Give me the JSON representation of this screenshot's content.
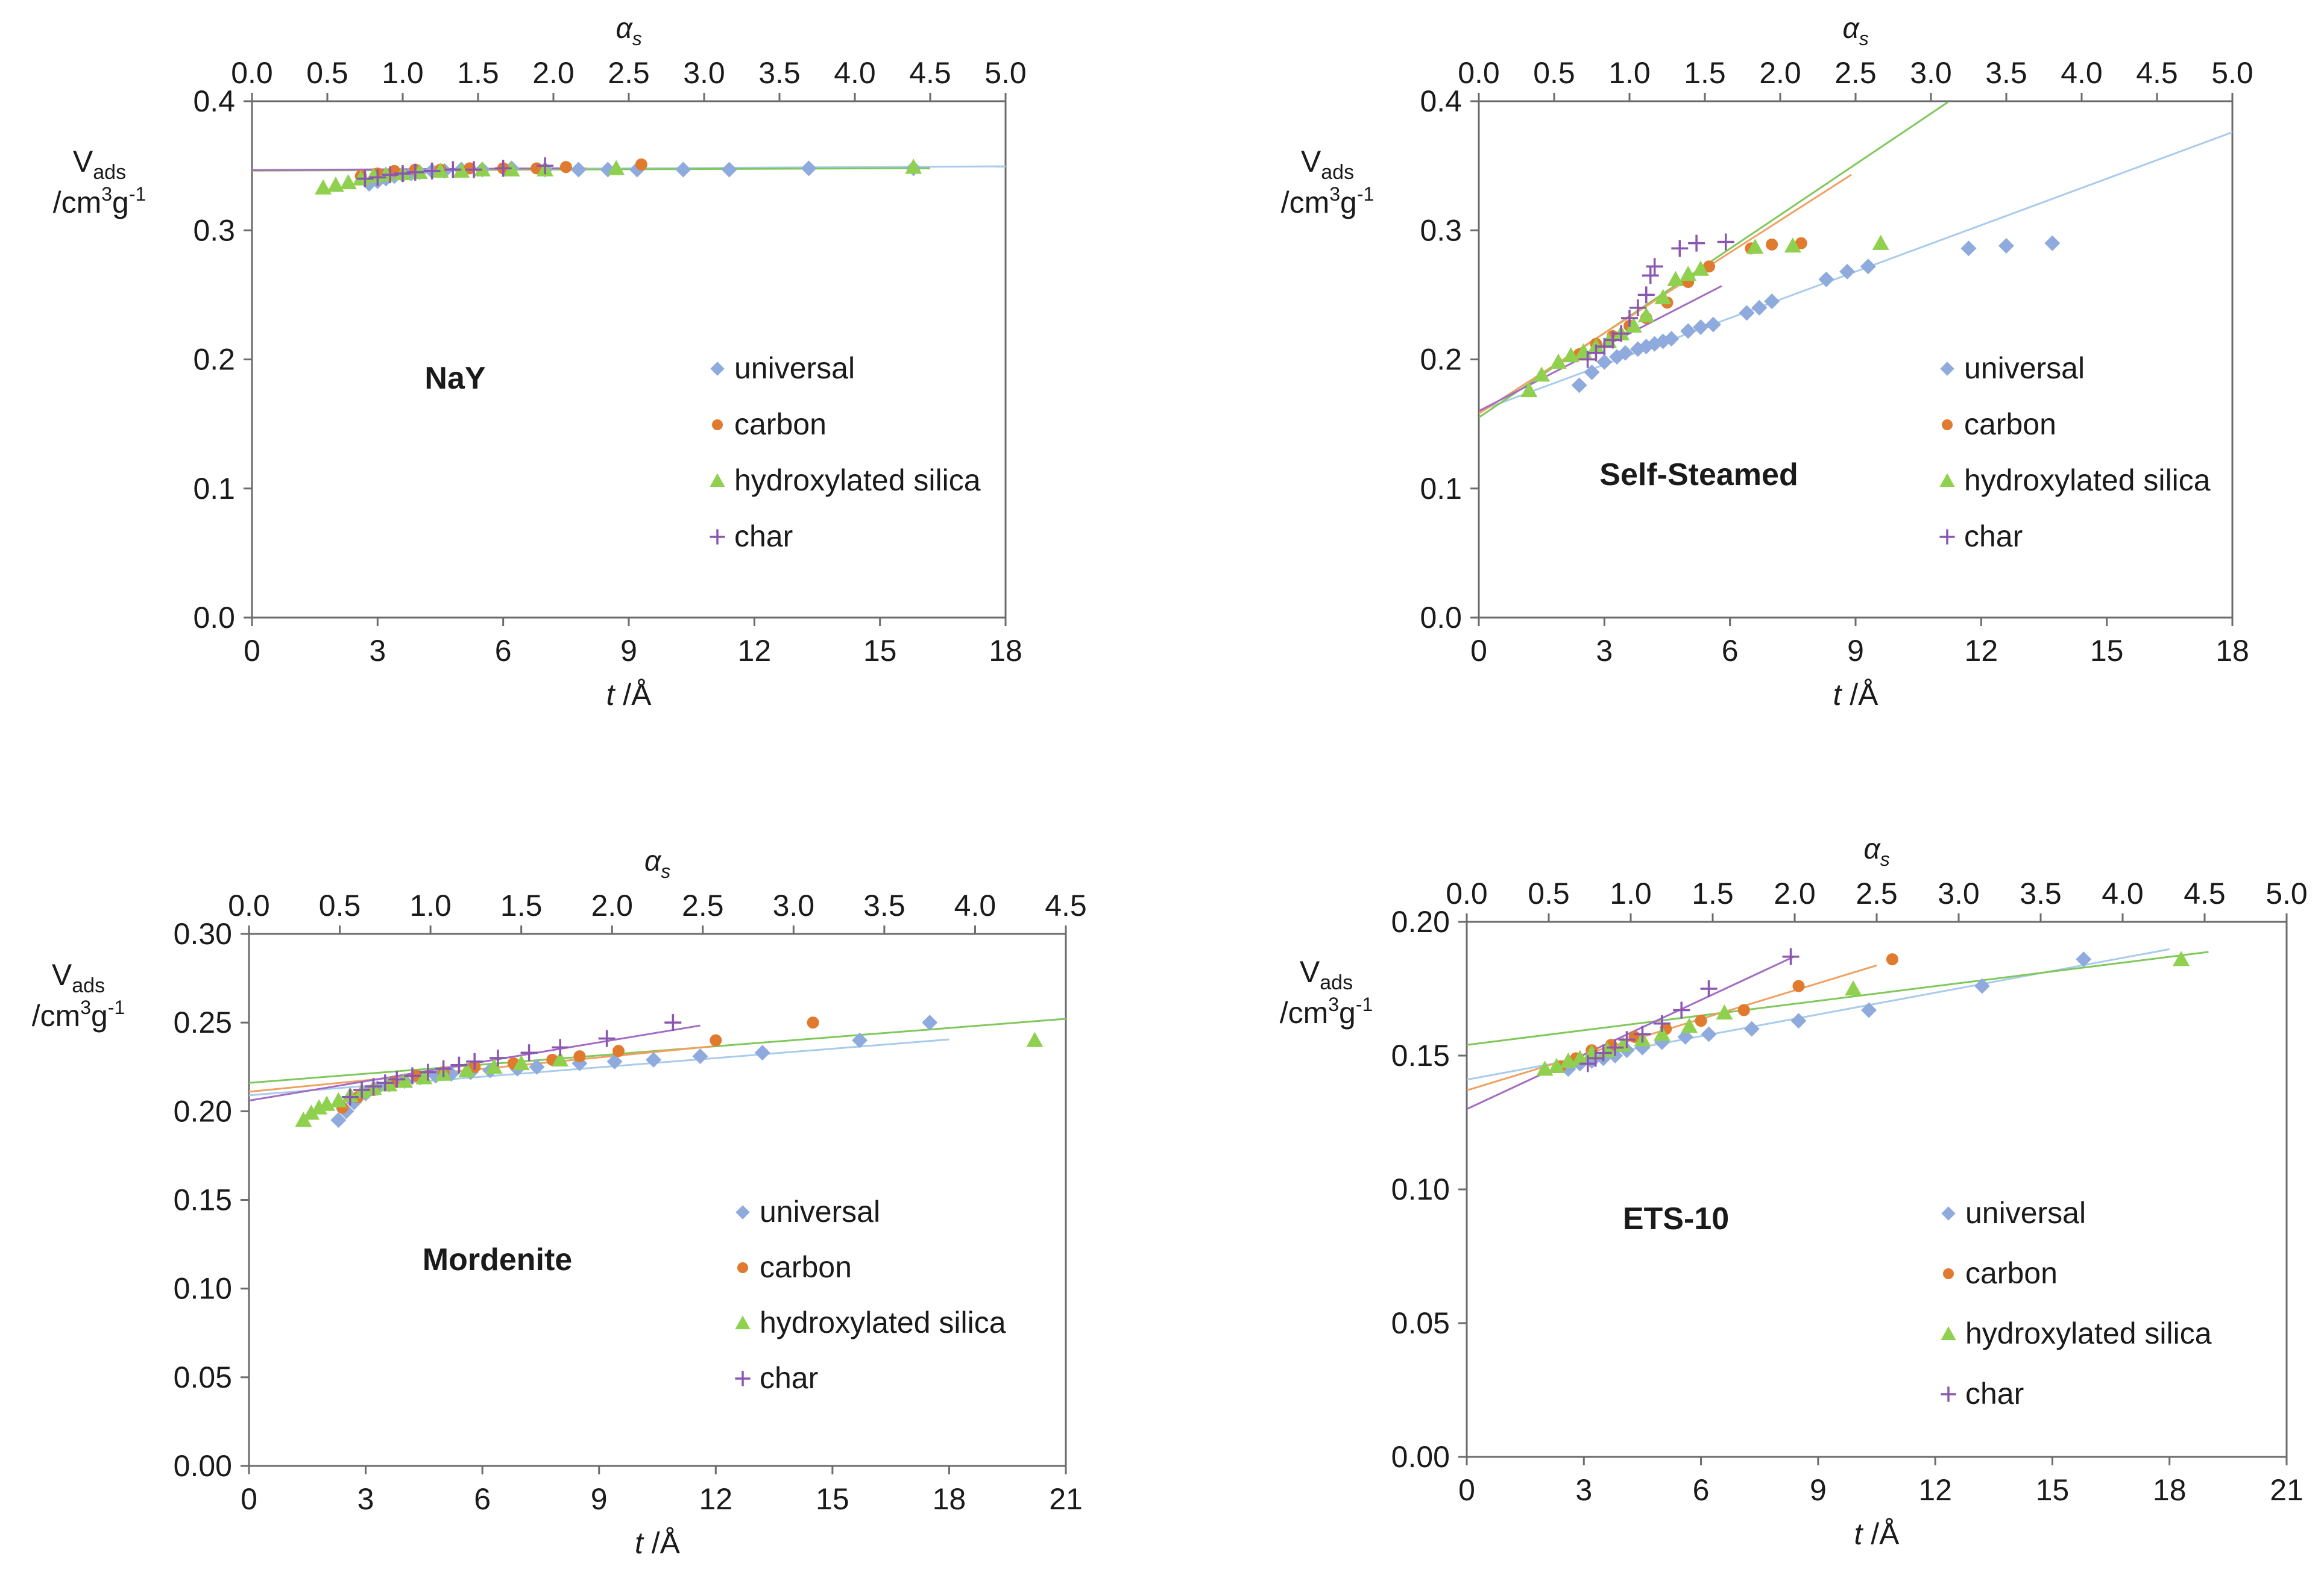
{
  "colors": {
    "universal": "#8faadc",
    "carbon": "#e07a2e",
    "hydroxylated_silica": "#8fd14f",
    "char": "#8a56b0",
    "universal_line": "#a9cbec",
    "carbon_line": "#f0a060",
    "hydroxylated_silica_line": "#7fc85a",
    "char_line": "#a36bc4",
    "axis": "#6b6b6b"
  },
  "chart_data": [
    {
      "type": "scatter",
      "title": "NaY",
      "xlabel_t": "t",
      "xlabel_unit": "/Å",
      "xlabel_alpha": "α",
      "xlabel_alpha_sub": "s",
      "ylabel_main": "V",
      "ylabel_sub": "ads",
      "ylabel_unit_pre": "/cm",
      "ylabel_unit_sup1": "3",
      "ylabel_unit_mid": "g",
      "ylabel_unit_sup2": "-1",
      "xlim": [
        0,
        18
      ],
      "ylim": [
        0,
        0.4
      ],
      "alim": [
        0,
        5
      ],
      "xticks": [
        "0",
        "3",
        "6",
        "9",
        "12",
        "15",
        "18"
      ],
      "yticks": [
        "0.0",
        "0.1",
        "0.2",
        "0.3",
        "0.4"
      ],
      "aticks": [
        "0.0",
        "0.5",
        "1.0",
        "1.5",
        "2.0",
        "2.5",
        "3.0",
        "3.5",
        "4.0",
        "4.5",
        "5.0"
      ],
      "legend": [
        "universal",
        "carbon",
        "hydroxylated silica",
        "char"
      ],
      "series": [
        {
          "name": "universal",
          "marker": "diamond",
          "x": [
            2.8,
            3.0,
            3.2,
            3.4,
            3.6,
            3.8,
            4.0,
            4.3,
            4.6,
            5.0,
            5.5,
            6.2,
            7.0,
            7.8,
            8.5,
            9.2,
            10.3,
            11.4,
            13.3,
            15.8
          ],
          "y": [
            0.336,
            0.338,
            0.34,
            0.342,
            0.343,
            0.344,
            0.345,
            0.346,
            0.346,
            0.347,
            0.347,
            0.348,
            0.347,
            0.347,
            0.347,
            0.347,
            0.347,
            0.347,
            0.348,
            0.348
          ]
        },
        {
          "name": "carbon",
          "marker": "circle",
          "x": [
            2.6,
            3.0,
            3.4,
            3.9,
            4.5,
            5.2,
            6.0,
            6.8,
            7.5,
            9.3
          ],
          "y": [
            0.342,
            0.344,
            0.346,
            0.347,
            0.347,
            0.348,
            0.348,
            0.348,
            0.349,
            0.351
          ]
        },
        {
          "name": "hydroxylated silica",
          "marker": "triangle",
          "x": [
            1.7,
            2.0,
            2.3,
            2.6,
            2.9,
            3.2,
            3.6,
            4.0,
            4.5,
            5.0,
            5.5,
            6.2,
            7.0,
            8.7,
            15.8
          ],
          "y": [
            0.333,
            0.335,
            0.337,
            0.34,
            0.342,
            0.343,
            0.344,
            0.345,
            0.346,
            0.346,
            0.347,
            0.347,
            0.347,
            0.348,
            0.349
          ]
        },
        {
          "name": "char",
          "marker": "plus",
          "x": [
            2.7,
            3.0,
            3.3,
            3.6,
            3.9,
            4.3,
            4.8,
            5.3,
            6.0,
            7.0
          ],
          "y": [
            0.34,
            0.341,
            0.343,
            0.344,
            0.345,
            0.346,
            0.347,
            0.347,
            0.348,
            0.35
          ]
        }
      ],
      "fits": [
        {
          "name": "universal",
          "slope": 0.00017,
          "intercept": 0.3465,
          "x_range": [
            0,
            18
          ]
        },
        {
          "name": "hydroxylated silica",
          "slope": 0.00012,
          "intercept": 0.3462,
          "x_range": [
            0,
            16.2
          ]
        },
        {
          "name": "carbon",
          "slope": 0.0002,
          "intercept": 0.3465,
          "x_range": [
            0,
            8
          ]
        },
        {
          "name": "char",
          "slope": 0.0002,
          "intercept": 0.3466,
          "x_range": [
            0,
            7.5
          ]
        }
      ]
    },
    {
      "type": "scatter",
      "title": "Self-Steamed",
      "xlabel_t": "t",
      "xlabel_unit": "/Å",
      "xlabel_alpha": "α",
      "xlabel_alpha_sub": "s",
      "ylabel_main": "V",
      "ylabel_sub": "ads",
      "ylabel_unit_pre": "/cm",
      "ylabel_unit_sup1": "3",
      "ylabel_unit_mid": "g",
      "ylabel_unit_sup2": "-1",
      "xlim": [
        0,
        18
      ],
      "ylim": [
        0,
        0.4
      ],
      "alim": [
        0,
        5
      ],
      "xticks": [
        "0",
        "3",
        "6",
        "9",
        "12",
        "15",
        "18"
      ],
      "yticks": [
        "0.0",
        "0.1",
        "0.2",
        "0.3",
        "0.4"
      ],
      "aticks": [
        "0.0",
        "0.5",
        "1.0",
        "1.5",
        "2.0",
        "2.5",
        "3.0",
        "3.5",
        "4.0",
        "4.5",
        "5.0"
      ],
      "legend": [
        "universal",
        "carbon",
        "hydroxylated silica",
        "char"
      ],
      "series": [
        {
          "name": "universal",
          "marker": "diamond",
          "x": [
            2.4,
            2.7,
            3.0,
            3.3,
            3.5,
            3.8,
            4.0,
            4.2,
            4.4,
            4.6,
            5.0,
            5.3,
            5.6,
            6.4,
            6.7,
            7.0,
            8.3,
            8.8,
            9.3,
            11.7,
            12.6,
            13.7
          ],
          "y": [
            0.18,
            0.19,
            0.198,
            0.202,
            0.205,
            0.208,
            0.21,
            0.212,
            0.214,
            0.216,
            0.222,
            0.225,
            0.227,
            0.236,
            0.24,
            0.245,
            0.262,
            0.268,
            0.272,
            0.286,
            0.288,
            0.29
          ]
        },
        {
          "name": "carbon",
          "marker": "circle",
          "x": [
            2.4,
            2.8,
            3.2,
            3.6,
            4.0,
            4.5,
            5.0,
            5.5,
            6.5,
            7.0,
            7.7
          ],
          "y": [
            0.204,
            0.212,
            0.218,
            0.226,
            0.232,
            0.244,
            0.26,
            0.272,
            0.286,
            0.289,
            0.29
          ]
        },
        {
          "name": "hydroxylated silica",
          "marker": "triangle",
          "x": [
            1.2,
            1.5,
            1.9,
            2.2,
            2.5,
            2.8,
            3.1,
            3.4,
            3.7,
            4.0,
            4.4,
            4.7,
            5.0,
            5.3,
            6.6,
            7.5,
            9.6
          ],
          "y": [
            0.176,
            0.188,
            0.198,
            0.203,
            0.206,
            0.21,
            0.214,
            0.22,
            0.226,
            0.234,
            0.248,
            0.262,
            0.266,
            0.27,
            0.287,
            0.288,
            0.29
          ]
        },
        {
          "name": "char",
          "marker": "plus",
          "x": [
            2.6,
            2.8,
            3.0,
            3.2,
            3.4,
            3.6,
            3.8,
            4.0,
            4.1,
            4.2,
            4.8,
            5.2,
            5.9
          ],
          "y": [
            0.2,
            0.205,
            0.21,
            0.215,
            0.22,
            0.232,
            0.24,
            0.25,
            0.265,
            0.272,
            0.286,
            0.29,
            0.291
          ]
        }
      ],
      "fits": [
        {
          "name": "universal",
          "slope": 0.012,
          "intercept": 0.16,
          "x_range": [
            0,
            18
          ]
        },
        {
          "name": "hydroxylated silica",
          "slope": 0.0218,
          "intercept": 0.155,
          "x_range": [
            0,
            11.2
          ]
        },
        {
          "name": "carbon",
          "slope": 0.0208,
          "intercept": 0.158,
          "x_range": [
            0,
            8.9
          ]
        },
        {
          "name": "char",
          "slope": 0.0167,
          "intercept": 0.16,
          "x_range": [
            0,
            5.8
          ]
        }
      ]
    },
    {
      "type": "scatter",
      "title": "Mordenite",
      "xlabel_t": "t",
      "xlabel_unit": "/Å",
      "xlabel_alpha": "α",
      "xlabel_alpha_sub": "s",
      "ylabel_main": "V",
      "ylabel_sub": "ads",
      "ylabel_unit_pre": "/cm",
      "ylabel_unit_sup1": "3",
      "ylabel_unit_mid": "g",
      "ylabel_unit_sup2": "-1",
      "xlim": [
        0,
        21
      ],
      "ylim": [
        0,
        0.3
      ],
      "alim": [
        0,
        4.5
      ],
      "xticks": [
        "0",
        "3",
        "6",
        "9",
        "12",
        "15",
        "18",
        "21"
      ],
      "yticks": [
        "0.00",
        "0.05",
        "0.10",
        "0.15",
        "0.20",
        "0.25",
        "0.30"
      ],
      "aticks": [
        "0.0",
        "0.5",
        "1.0",
        "1.5",
        "2.0",
        "2.5",
        "3.0",
        "3.5",
        "4.0",
        "4.5"
      ],
      "legend": [
        "universal",
        "carbon",
        "hydroxylated silica",
        "char"
      ],
      "series": [
        {
          "name": "universal",
          "marker": "diamond",
          "x": [
            2.3,
            2.5,
            2.7,
            3.0,
            3.3,
            3.6,
            4.0,
            4.4,
            4.8,
            5.2,
            5.7,
            6.2,
            6.9,
            7.4,
            8.5,
            9.4,
            10.4,
            11.6,
            13.2,
            15.7,
            17.5
          ],
          "y": [
            0.195,
            0.2,
            0.205,
            0.21,
            0.213,
            0.215,
            0.217,
            0.219,
            0.22,
            0.221,
            0.222,
            0.223,
            0.224,
            0.225,
            0.227,
            0.228,
            0.229,
            0.231,
            0.233,
            0.24,
            0.25
          ]
        },
        {
          "name": "carbon",
          "marker": "circle",
          "x": [
            2.4,
            2.8,
            3.2,
            3.7,
            4.3,
            5.0,
            5.8,
            6.8,
            7.8,
            8.5,
            9.5,
            12.0,
            14.5
          ],
          "y": [
            0.202,
            0.208,
            0.212,
            0.216,
            0.22,
            0.222,
            0.225,
            0.227,
            0.229,
            0.231,
            0.234,
            0.24,
            0.25
          ]
        },
        {
          "name": "hydroxylated silica",
          "marker": "triangle",
          "x": [
            1.4,
            1.6,
            1.8,
            2.0,
            2.3,
            2.6,
            2.9,
            3.2,
            3.6,
            4.0,
            4.5,
            5.0,
            5.6,
            6.3,
            7.0,
            8.0,
            20.2
          ],
          "y": [
            0.195,
            0.199,
            0.202,
            0.204,
            0.206,
            0.209,
            0.211,
            0.213,
            0.215,
            0.217,
            0.219,
            0.221,
            0.223,
            0.225,
            0.227,
            0.229,
            0.24
          ]
        },
        {
          "name": "char",
          "marker": "plus",
          "x": [
            2.6,
            2.9,
            3.2,
            3.5,
            3.8,
            4.2,
            4.6,
            5.0,
            5.4,
            5.8,
            6.4,
            7.2,
            8.0,
            9.2,
            10.9
          ],
          "y": [
            0.208,
            0.212,
            0.214,
            0.216,
            0.218,
            0.22,
            0.222,
            0.224,
            0.226,
            0.228,
            0.23,
            0.233,
            0.236,
            0.241,
            0.25
          ]
        }
      ],
      "fits": [
        {
          "name": "universal",
          "slope": 0.00175,
          "intercept": 0.209,
          "x_range": [
            0,
            18
          ]
        },
        {
          "name": "hydroxylated silica",
          "slope": 0.00172,
          "intercept": 0.216,
          "x_range": [
            0,
            21
          ]
        },
        {
          "name": "carbon",
          "slope": 0.00215,
          "intercept": 0.211,
          "x_range": [
            0,
            11.9
          ]
        },
        {
          "name": "char",
          "slope": 0.00365,
          "intercept": 0.206,
          "x_range": [
            0,
            11.6
          ]
        }
      ]
    },
    {
      "type": "scatter",
      "title": "ETS-10",
      "xlabel_t": "t",
      "xlabel_unit": "/Å",
      "xlabel_alpha": "α",
      "xlabel_alpha_sub": "s",
      "ylabel_main": "V",
      "ylabel_sub": "ads",
      "ylabel_unit_pre": "/cm",
      "ylabel_unit_sup1": "3",
      "ylabel_unit_mid": "g",
      "ylabel_unit_sup2": "-1",
      "xlim": [
        0,
        21
      ],
      "ylim": [
        0,
        0.2
      ],
      "alim": [
        0,
        5
      ],
      "xticks": [
        "0",
        "3",
        "6",
        "9",
        "12",
        "15",
        "18",
        "21"
      ],
      "yticks": [
        "0.00",
        "0.05",
        "0.10",
        "0.15",
        "0.20"
      ],
      "aticks": [
        "0.0",
        "0.5",
        "1.0",
        "1.5",
        "2.0",
        "2.5",
        "3.0",
        "3.5",
        "4.0",
        "4.5",
        "5.0"
      ],
      "legend": [
        "universal",
        "carbon",
        "hydroxylated silica",
        "char"
      ],
      "series": [
        {
          "name": "universal",
          "marker": "diamond",
          "x": [
            2.6,
            2.9,
            3.2,
            3.5,
            3.8,
            4.1,
            4.5,
            5.0,
            5.6,
            6.2,
            7.3,
            8.5,
            10.3,
            13.2,
            15.8
          ],
          "y": [
            0.145,
            0.147,
            0.148,
            0.149,
            0.15,
            0.152,
            0.153,
            0.155,
            0.157,
            0.158,
            0.16,
            0.163,
            0.167,
            0.176,
            0.186
          ]
        },
        {
          "name": "carbon",
          "marker": "circle",
          "x": [
            2.4,
            2.8,
            3.2,
            3.7,
            4.3,
            5.1,
            6.0,
            7.1,
            8.5,
            10.9
          ],
          "y": [
            0.146,
            0.149,
            0.152,
            0.154,
            0.157,
            0.16,
            0.163,
            0.167,
            0.176,
            0.186
          ]
        },
        {
          "name": "hydroxylated silica",
          "marker": "triangle",
          "x": [
            2.0,
            2.3,
            2.6,
            2.9,
            3.2,
            3.6,
            4.0,
            4.5,
            5.0,
            5.7,
            6.6,
            9.9,
            18.3
          ],
          "y": [
            0.145,
            0.146,
            0.148,
            0.149,
            0.151,
            0.152,
            0.154,
            0.156,
            0.158,
            0.161,
            0.166,
            0.175,
            0.186
          ]
        },
        {
          "name": "char",
          "marker": "plus",
          "x": [
            3.1,
            3.3,
            3.5,
            3.8,
            4.1,
            4.5,
            5.0,
            5.5,
            6.2,
            8.3
          ],
          "y": [
            0.147,
            0.149,
            0.151,
            0.153,
            0.156,
            0.158,
            0.162,
            0.167,
            0.175,
            0.187
          ]
        }
      ],
      "fits": [
        {
          "name": "universal",
          "slope": 0.00271,
          "intercept": 0.141,
          "x_range": [
            0,
            18
          ]
        },
        {
          "name": "hydroxylated silica",
          "slope": 0.00183,
          "intercept": 0.154,
          "x_range": [
            0,
            19
          ]
        },
        {
          "name": "carbon",
          "slope": 0.00445,
          "intercept": 0.137,
          "x_range": [
            0,
            10.5
          ]
        },
        {
          "name": "char",
          "slope": 0.0068,
          "intercept": 0.13,
          "x_range": [
            0,
            8.4
          ]
        }
      ]
    }
  ]
}
